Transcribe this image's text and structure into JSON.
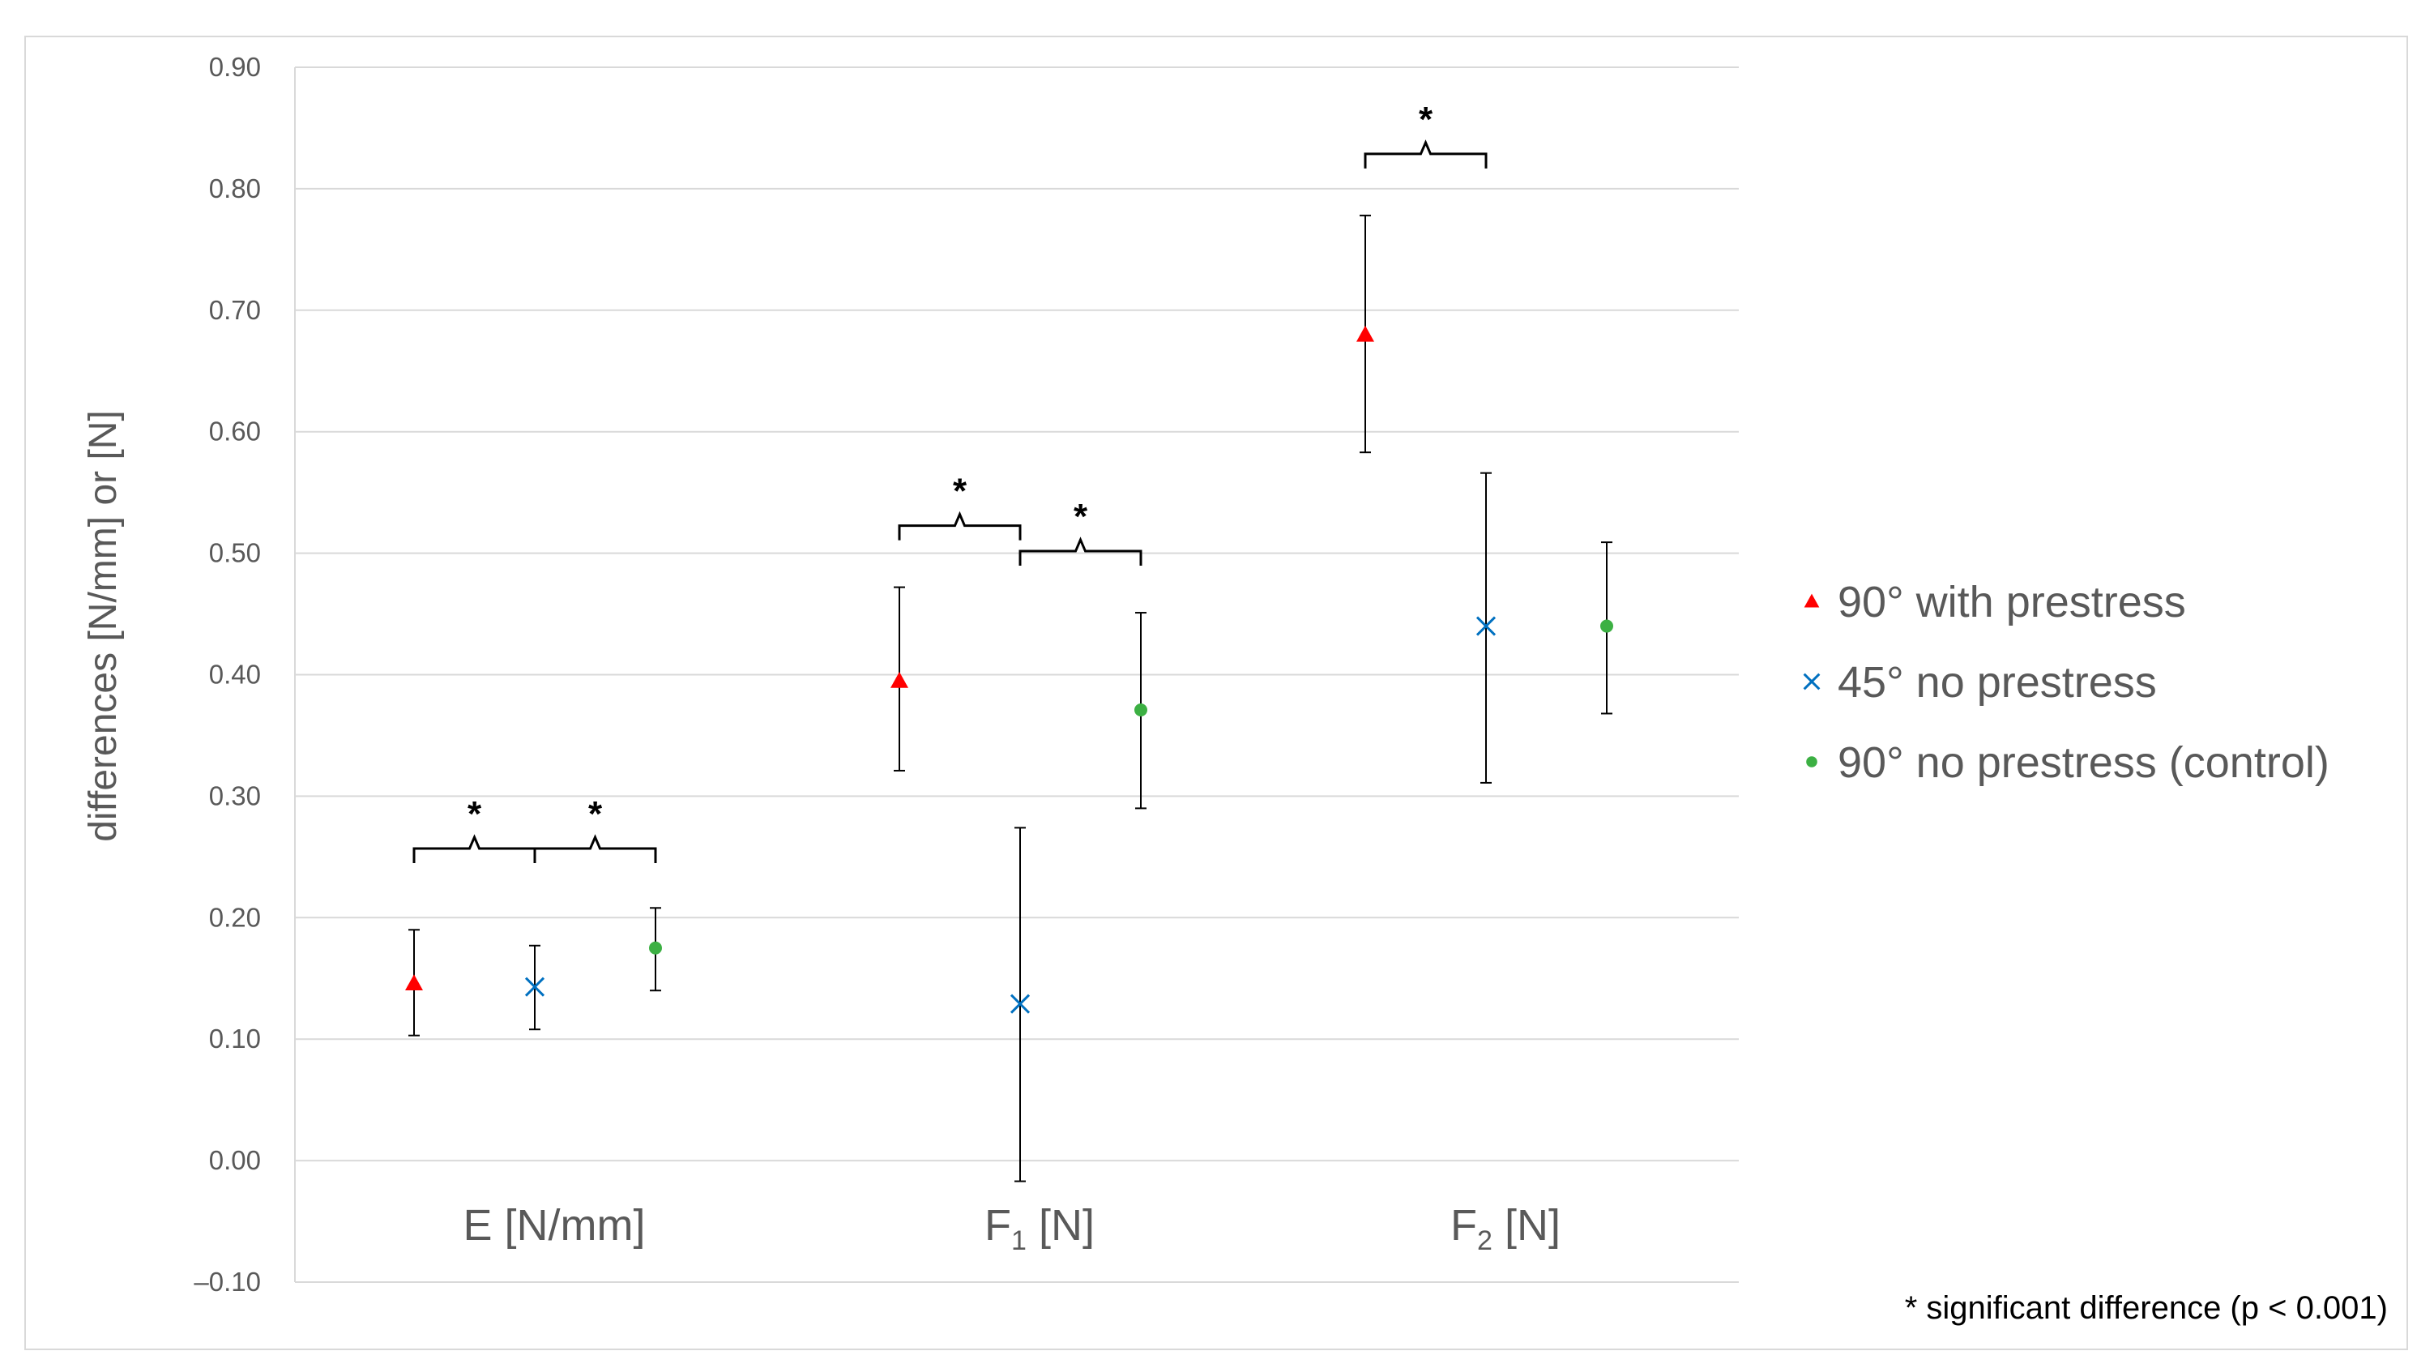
{
  "chart_data": {
    "type": "scatter",
    "ylabel": "differences [N/mm] or [N]",
    "ylim": [
      -0.1,
      0.9
    ],
    "yticks": [
      "–0.10",
      "0.00",
      "0.10",
      "0.20",
      "0.30",
      "0.40",
      "0.50",
      "0.60",
      "0.70",
      "0.80",
      "0.90"
    ],
    "grid": true,
    "legend_position": "right",
    "categories": [
      {
        "main": "E [N/mm]",
        "sub": "",
        "tail": ""
      },
      {
        "main": "F",
        "sub": "1",
        "tail": " [N]"
      },
      {
        "main": "F",
        "sub": "2",
        "tail": " [N]"
      }
    ],
    "series": [
      {
        "name": "90° with prestress",
        "marker": "triangle",
        "color": "#ff0000",
        "values": [
          0.146,
          0.395,
          0.68
        ],
        "error_low": [
          0.103,
          0.321,
          0.583
        ],
        "error_high": [
          0.19,
          0.472,
          0.778
        ]
      },
      {
        "name": "45° no prestress",
        "marker": "x",
        "color": "#0070c0",
        "values": [
          0.143,
          0.129,
          0.44
        ],
        "error_low": [
          0.108,
          -0.017,
          0.311
        ],
        "error_high": [
          0.177,
          0.274,
          0.566
        ]
      },
      {
        "name": "90° no prestress (control)",
        "marker": "circle",
        "color": "#3cb043",
        "values": [
          0.175,
          0.371,
          0.44
        ],
        "error_low": [
          0.14,
          0.29,
          0.368
        ],
        "error_high": [
          0.208,
          0.451,
          0.509
        ]
      }
    ],
    "significance": [
      {
        "category": 0,
        "from_series": 0,
        "to_series": 1,
        "label": "*"
      },
      {
        "category": 0,
        "from_series": 1,
        "to_series": 2,
        "label": "*"
      },
      {
        "category": 1,
        "from_series": 0,
        "to_series": 1,
        "label": "*"
      },
      {
        "category": 1,
        "from_series": 1,
        "to_series": 2,
        "label": "*"
      },
      {
        "category": 2,
        "from_series": 0,
        "to_series": 1,
        "label": "*"
      }
    ],
    "note": "* significant difference  (p < 0.001)"
  }
}
